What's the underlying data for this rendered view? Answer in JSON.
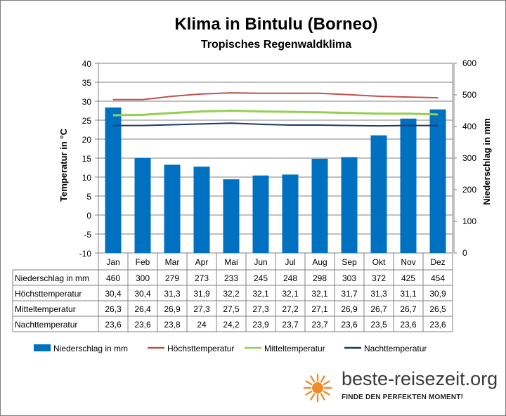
{
  "chart_data": {
    "type": "bar",
    "title": "Klima in Bintulu (Borneo)",
    "subtitle": "Tropisches  Regenwaldklima",
    "ylabel_left": "Temperatur in °C",
    "ylabel_right": "Niederschlag in mm",
    "ylim_left": [
      -10,
      40
    ],
    "ylim_right": [
      0,
      600
    ],
    "yticks_left": [
      "40",
      "35",
      "30",
      "25",
      "20",
      "15",
      "10",
      "5",
      "0",
      "-5",
      "-10"
    ],
    "yticks_right": [
      "600",
      "500",
      "400",
      "300",
      "200",
      "100",
      "0"
    ],
    "grid": "horizontal",
    "legend_position": "bottom",
    "categories": [
      "Jan",
      "Feb",
      "Mar",
      "Apr",
      "Mai",
      "Jun",
      "Jul",
      "Aug",
      "Sep",
      "Okt",
      "Nov",
      "Dez"
    ],
    "series": [
      {
        "name": "Niederschlag in mm",
        "kind": "bar",
        "axis": "right",
        "color": "#0070C0",
        "values": [
          460,
          300,
          279,
          273,
          233,
          245,
          248,
          298,
          303,
          372,
          425,
          454
        ],
        "labels": [
          "460",
          "300",
          "279",
          "273",
          "233",
          "245",
          "248",
          "298",
          "303",
          "372",
          "425",
          "454"
        ]
      },
      {
        "name": "Höchsttemperatur",
        "kind": "line",
        "axis": "left",
        "color": "#C0504D",
        "values": [
          30.4,
          30.4,
          31.3,
          31.9,
          32.2,
          32.1,
          32.1,
          32.1,
          31.7,
          31.3,
          31.1,
          30.9
        ],
        "labels": [
          "30,4",
          "30,4",
          "31,3",
          "31,9",
          "32,2",
          "32,1",
          "32,1",
          "32,1",
          "31,7",
          "31,3",
          "31,1",
          "30,9"
        ]
      },
      {
        "name": "Mitteltemperatur",
        "kind": "line",
        "axis": "left",
        "color": "#92D050",
        "values": [
          26.3,
          26.4,
          26.9,
          27.3,
          27.5,
          27.3,
          27.2,
          27.1,
          26.9,
          26.7,
          26.7,
          26.5
        ],
        "labels": [
          "26,3",
          "26,4",
          "26,9",
          "27,3",
          "27,5",
          "27,3",
          "27,2",
          "27,1",
          "26,9",
          "26,7",
          "26,7",
          "26,5"
        ]
      },
      {
        "name": "Nachttemperatur",
        "kind": "line",
        "axis": "left",
        "color": "#1F3864",
        "values": [
          23.6,
          23.6,
          23.8,
          24,
          24.2,
          23.9,
          23.7,
          23.7,
          23.6,
          23.5,
          23.6,
          23.6
        ],
        "labels": [
          "23,6",
          "23,6",
          "23,8",
          "24",
          "24,2",
          "23,9",
          "23,7",
          "23,7",
          "23,6",
          "23,5",
          "23,6",
          "23,6"
        ]
      }
    ]
  },
  "brand": {
    "name": "beste-reisezeit.org",
    "tagline": "FINDE DEN PERFEKTEN MOMENT!",
    "sun_color": "#F08A2C"
  }
}
